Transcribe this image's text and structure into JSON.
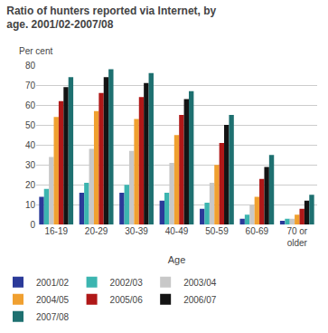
{
  "chart_data": {
    "type": "bar",
    "title": "Ratio of hunters reported via Internet, by age. 2001/02-2007/08",
    "ylabel": "Per cent",
    "xlabel": "Age",
    "categories": [
      "16-19",
      "20-29",
      "30-39",
      "40-49",
      "50-59",
      "60-69",
      "70 or\nolder"
    ],
    "series": [
      {
        "name": "2001/02",
        "color": "#2b3a99",
        "values": [
          14,
          16,
          16,
          12,
          8,
          3,
          2
        ]
      },
      {
        "name": "2002/03",
        "color": "#3cb5b0",
        "values": [
          18,
          21,
          20,
          16,
          11,
          5,
          3
        ]
      },
      {
        "name": "2003/04",
        "color": "#c8c8c8",
        "values": [
          34,
          38,
          37,
          31,
          21,
          10,
          3
        ]
      },
      {
        "name": "2004/05",
        "color": "#f0a030",
        "values": [
          54,
          57,
          53,
          45,
          30,
          14,
          5
        ]
      },
      {
        "name": "2005/06",
        "color": "#b01818",
        "values": [
          62,
          66,
          64,
          55,
          41,
          23,
          8
        ]
      },
      {
        "name": "2006/07",
        "color": "#141414",
        "values": [
          69,
          74,
          71,
          63,
          50,
          29,
          12
        ]
      },
      {
        "name": "2007/08",
        "color": "#1e7070",
        "values": [
          74,
          78,
          76,
          67,
          55,
          35,
          15
        ]
      }
    ],
    "ylim": [
      0,
      80
    ],
    "yticks": [
      0,
      10,
      20,
      30,
      40,
      50,
      60,
      70,
      80
    ],
    "grid": true,
    "legend": "bottom"
  }
}
